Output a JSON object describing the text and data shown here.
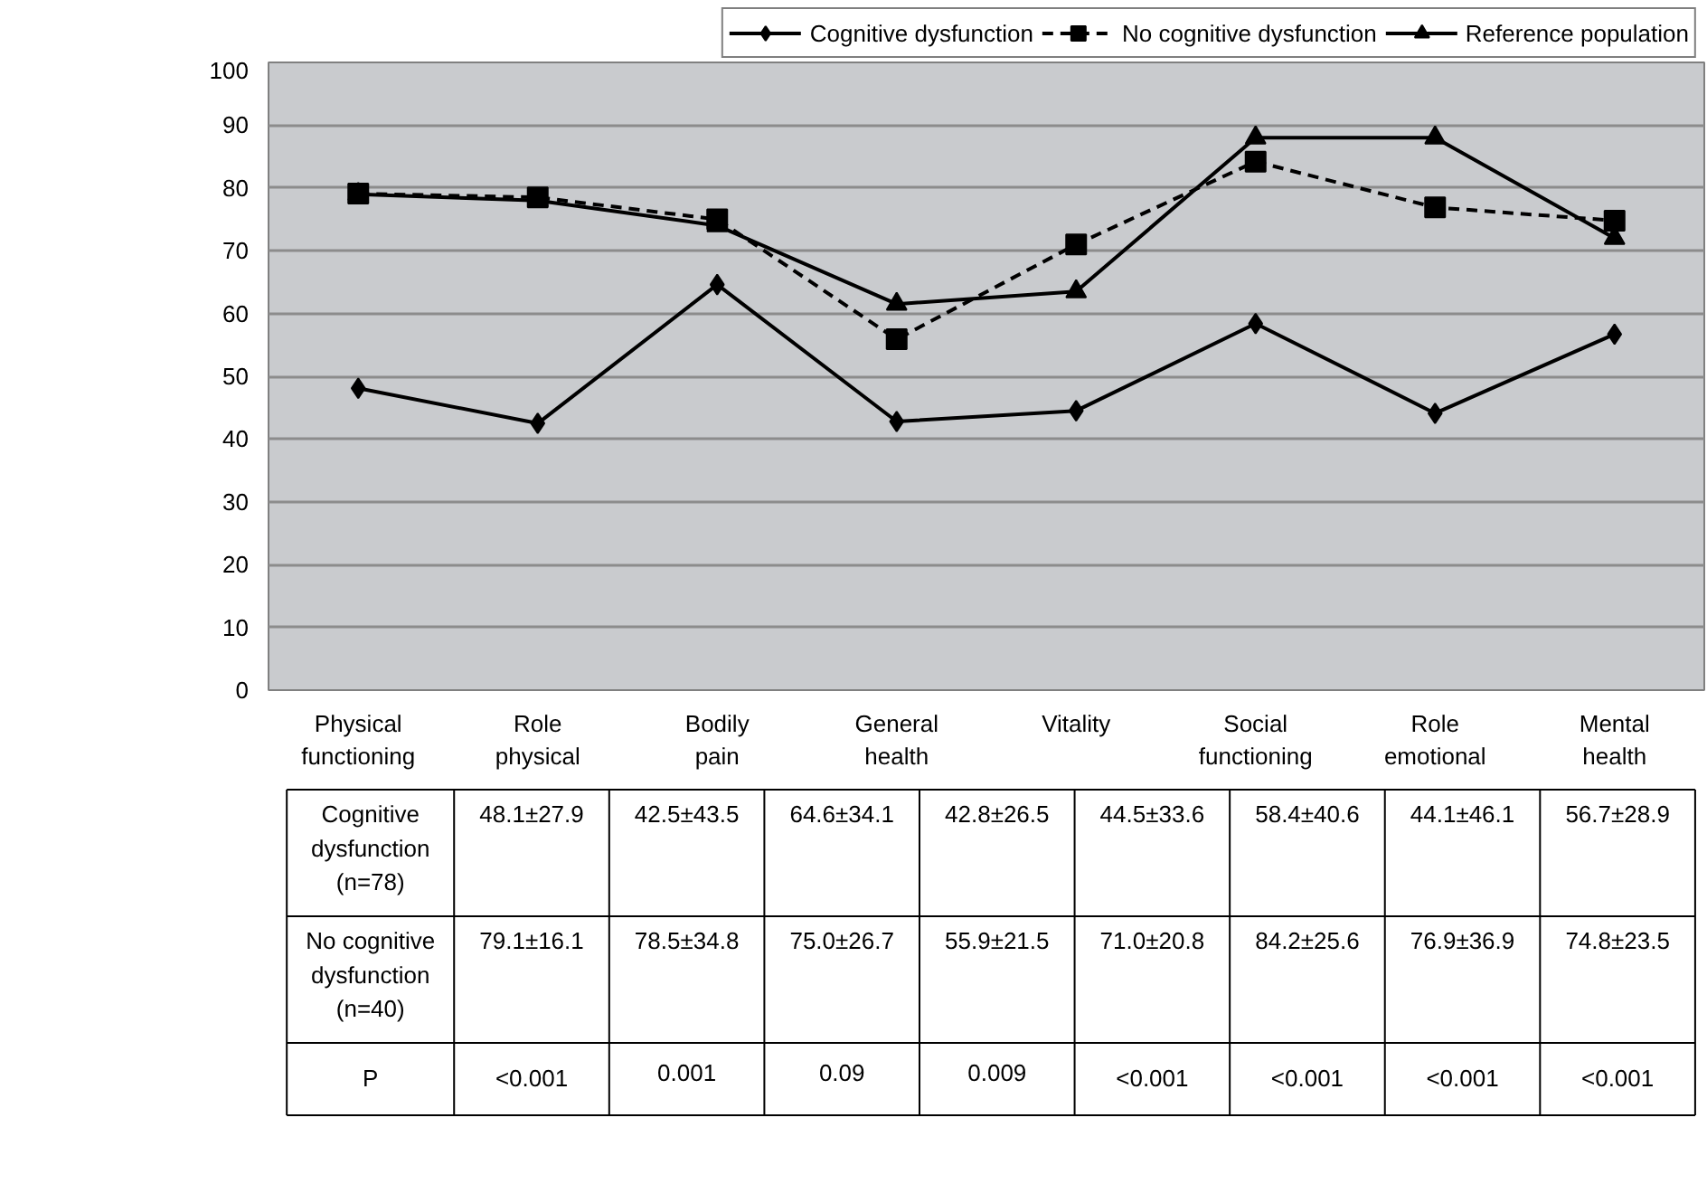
{
  "chart_data": {
    "type": "line",
    "categories": [
      "Physical functioning",
      "Role physical",
      "Bodily pain",
      "General health",
      "Vitality",
      "Social functioning",
      "Role emotional",
      "Mental health"
    ],
    "series": [
      {
        "name": "Cognitive dysfunction",
        "color": "#000000",
        "marker": "diamond",
        "line_style": "solid",
        "values": [
          48.1,
          42.5,
          64.6,
          42.8,
          44.5,
          58.4,
          44.1,
          56.7
        ]
      },
      {
        "name": "No cognitive dysfunction",
        "color": "#000000",
        "marker": "square",
        "line_style": "dashed",
        "values": [
          79.1,
          78.5,
          75.0,
          55.9,
          71.0,
          84.2,
          76.9,
          74.8
        ]
      },
      {
        "name": "Reference population",
        "color": "#000000",
        "marker": "triangle",
        "line_style": "solid",
        "values": [
          79,
          78,
          74,
          61.5,
          63.5,
          88,
          88,
          72
        ]
      }
    ],
    "ylim": [
      0,
      100
    ],
    "yticks": [
      0,
      10,
      20,
      30,
      40,
      50,
      60,
      70,
      80,
      90,
      100
    ],
    "grid": "y",
    "legend": "top",
    "annotations": [
      "Cognitive dysfunction (n=78)",
      "48.1±27.9",
      "42.5±43.5",
      "64.6±34.1",
      "42.8±26.5",
      "44.5±33.6",
      "58.4±40.6",
      "44.1±46.1",
      "56.7±28.9",
      "No cognitive dysfunction (n=40)",
      "79.1±16.1",
      "78.5±34.8",
      "75.0±26.7",
      "55.9±21.5",
      "71.0±20.8",
      "84.2±25.6",
      "76.9±36.9",
      "74.8±23.5",
      "P",
      "<0.001",
      "0.001",
      "0.09",
      "0.009",
      "<0.001",
      "<0.001",
      "<0.001",
      "<0.001"
    ]
  }
}
